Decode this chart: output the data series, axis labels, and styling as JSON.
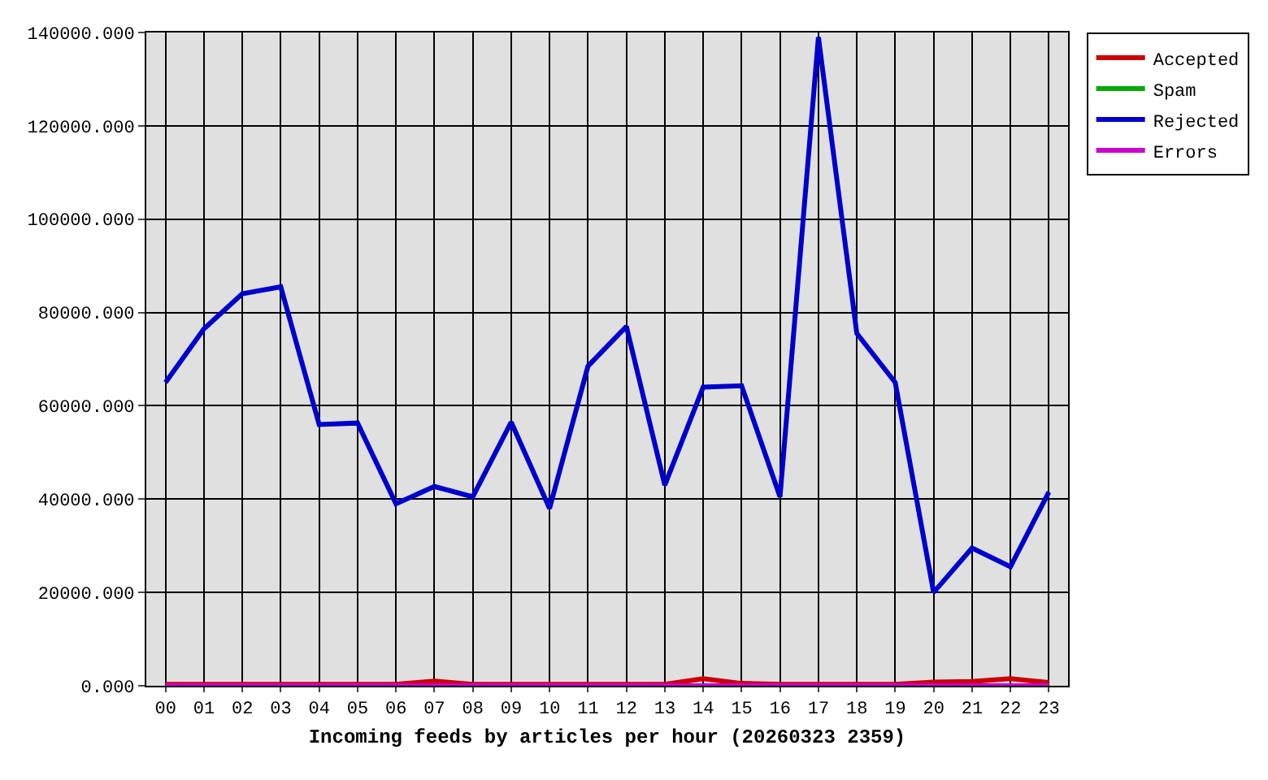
{
  "chart_data": {
    "type": "line",
    "xlabel": "Incoming feeds by articles per hour (20260323 2359)",
    "categories": [
      "00",
      "01",
      "02",
      "03",
      "04",
      "05",
      "06",
      "07",
      "08",
      "09",
      "10",
      "11",
      "12",
      "13",
      "14",
      "15",
      "16",
      "17",
      "18",
      "19",
      "20",
      "21",
      "22",
      "23"
    ],
    "series": [
      {
        "name": "Accepted",
        "color": "#cc0000",
        "values": [
          300,
          300,
          300,
          300,
          300,
          300,
          300,
          1000,
          300,
          300,
          300,
          300,
          300,
          300,
          1500,
          500,
          300,
          300,
          300,
          300,
          800,
          900,
          1500,
          700
        ]
      },
      {
        "name": "Spam",
        "color": "#00aa00",
        "values": [
          null,
          null,
          null,
          null,
          null,
          null,
          null,
          null,
          null,
          null,
          null,
          null,
          null,
          null,
          null,
          null,
          null,
          null,
          null,
          null,
          null,
          null,
          null,
          null
        ]
      },
      {
        "name": "Rejected",
        "color": "#0000cc",
        "values": [
          65000,
          76500,
          84000,
          85500,
          56000,
          56300,
          39000,
          42700,
          40500,
          56500,
          38000,
          68500,
          77000,
          43000,
          64000,
          64300,
          40500,
          139000,
          75500,
          65000,
          20000,
          29500,
          25500,
          41500
        ]
      },
      {
        "name": "Errors",
        "color": "#cc00cc",
        "values": [
          0,
          0,
          0,
          0,
          0,
          0,
          0,
          0,
          0,
          0,
          0,
          0,
          0,
          0,
          0,
          0,
          0,
          0,
          0,
          0,
          0,
          0,
          0,
          0
        ]
      }
    ],
    "ylim": [
      0,
      140000
    ],
    "yticks": [
      {
        "value": 0,
        "label": "0.000"
      },
      {
        "value": 20000,
        "label": "20000.000"
      },
      {
        "value": 40000,
        "label": "40000.000"
      },
      {
        "value": 60000,
        "label": "60000.000"
      },
      {
        "value": 80000,
        "label": "80000.000"
      },
      {
        "value": 100000,
        "label": "100000.000"
      },
      {
        "value": 120000,
        "label": "120000.000"
      },
      {
        "value": 140000,
        "label": "140000.000"
      }
    ],
    "grid": true,
    "legend": "top right",
    "line_style": "solid"
  }
}
